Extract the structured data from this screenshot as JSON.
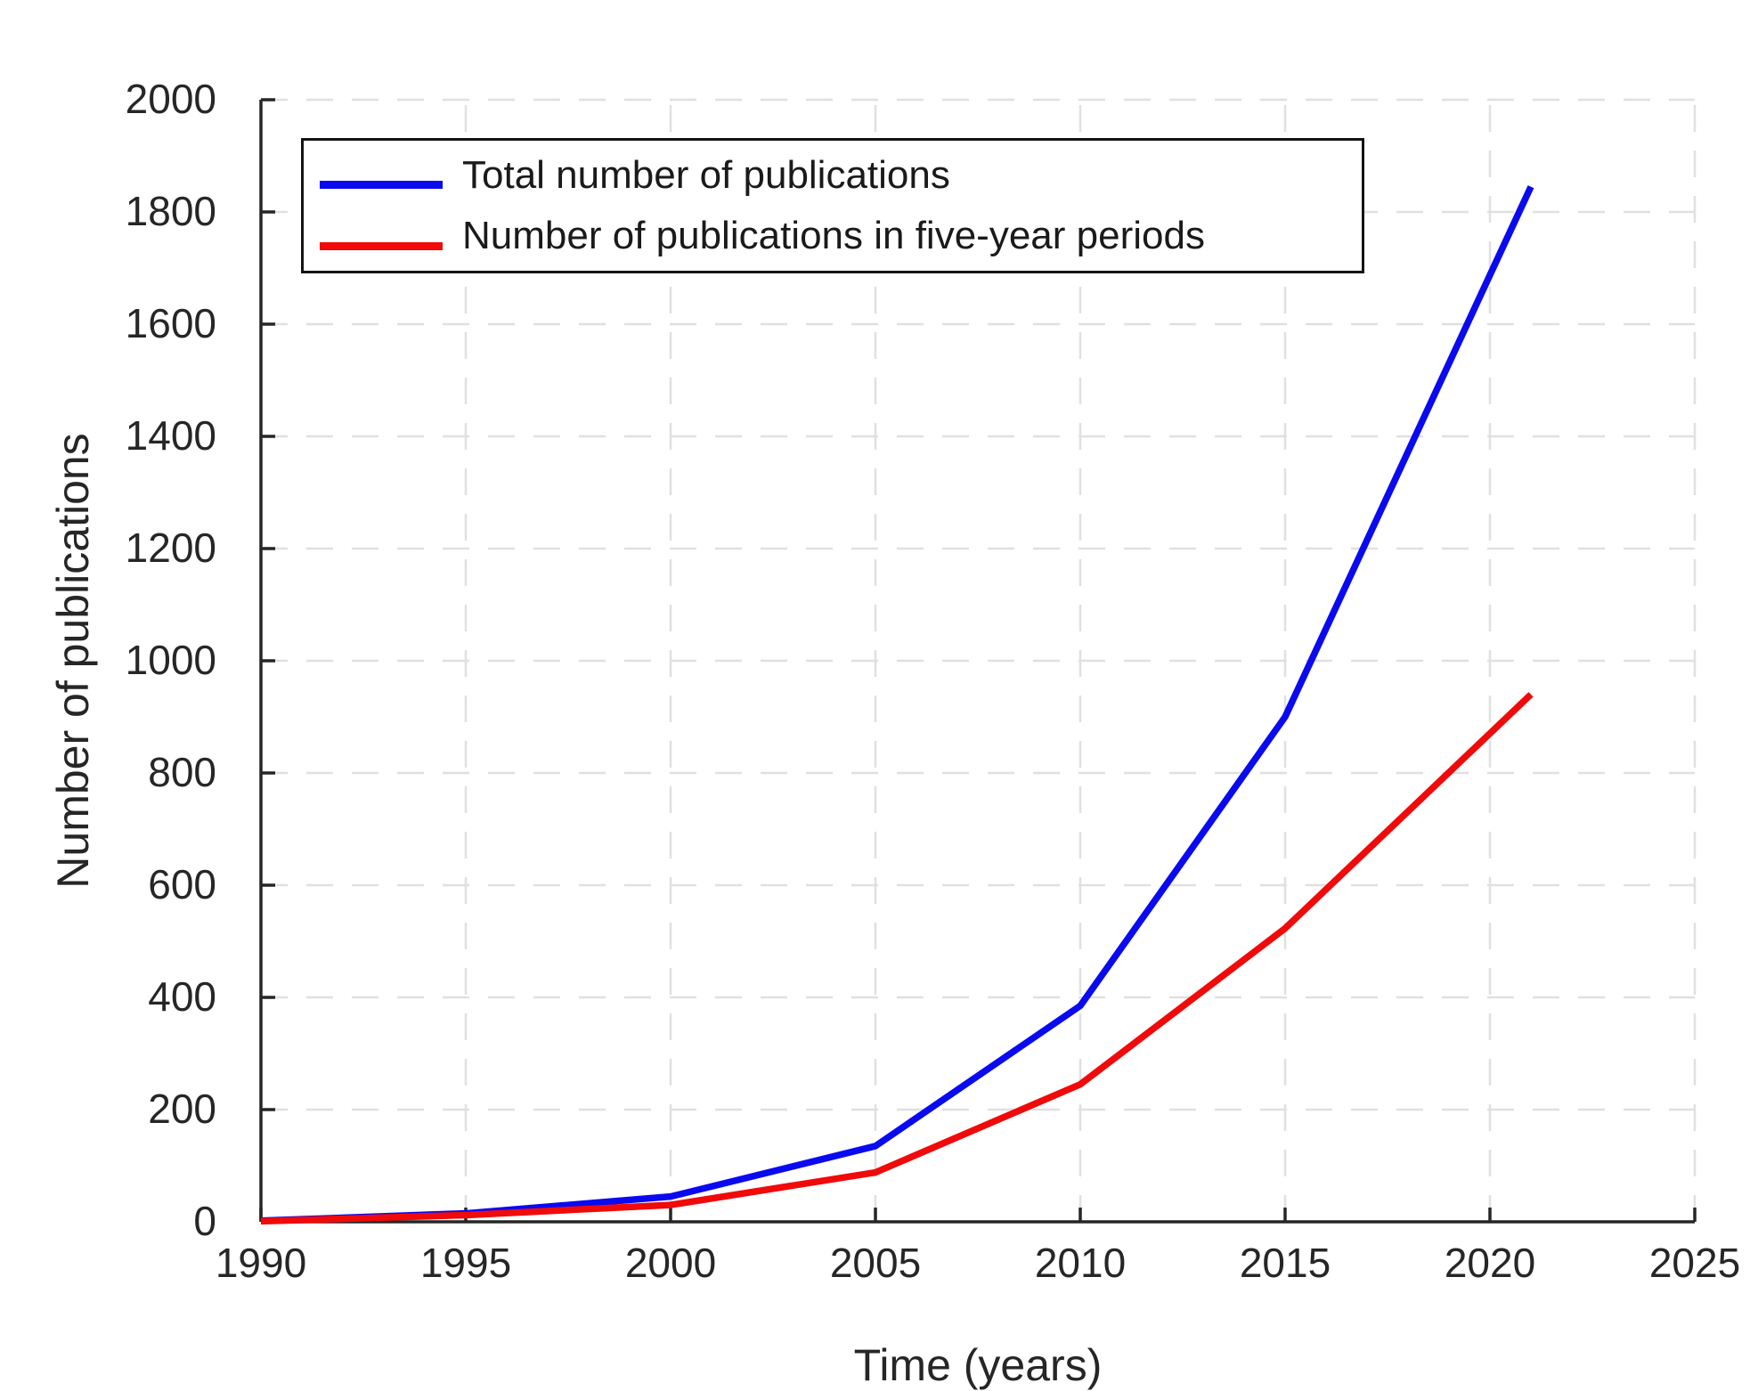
{
  "chart_data": {
    "type": "line",
    "title": "",
    "xlabel": "Time (years)",
    "ylabel": "Number of publications",
    "x": [
      1990,
      1995,
      2000,
      2005,
      2010,
      2015,
      2021
    ],
    "series": [
      {
        "name": "Total number of publications",
        "color": "#0a0af0",
        "values": [
          2,
          15,
          45,
          135,
          385,
          900,
          1845
        ]
      },
      {
        "name": "Number of publications in five-year periods",
        "color": "#f00a0a",
        "values": [
          1,
          12,
          30,
          88,
          245,
          523,
          940
        ]
      }
    ],
    "xlim": [
      1990,
      2025
    ],
    "ylim": [
      0,
      2000
    ],
    "x_ticks": [
      1990,
      1995,
      2000,
      2005,
      2010,
      2015,
      2020,
      2025
    ],
    "y_ticks": [
      0,
      200,
      400,
      600,
      800,
      1000,
      1200,
      1400,
      1600,
      1800,
      2000
    ],
    "grid": "dashed-major",
    "legend_position": "top-left",
    "grid_color": "#e0e0e0",
    "axis_color": "#262626",
    "tick_label_color": "#262626"
  }
}
